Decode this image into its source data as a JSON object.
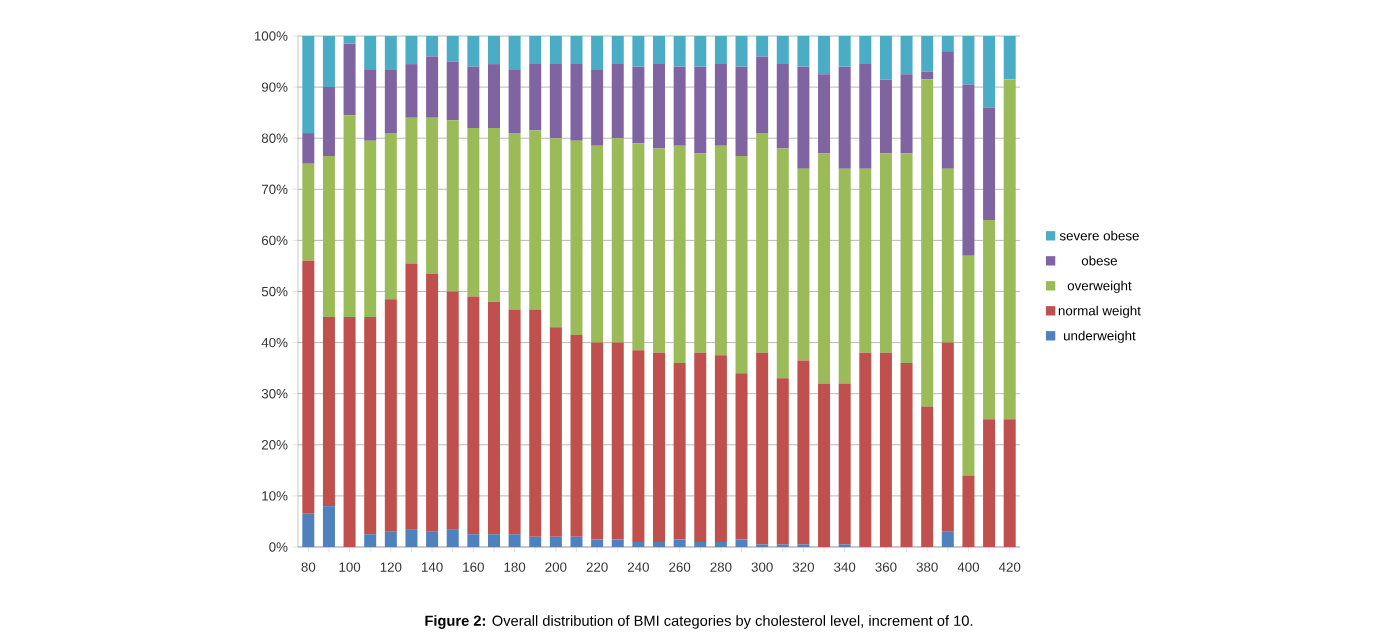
{
  "chart_data": {
    "type": "bar",
    "stacked": true,
    "categories": [
      "80",
      null,
      "100",
      null,
      "120",
      null,
      "140",
      null,
      "160",
      null,
      "180",
      null,
      "200",
      null,
      "220",
      null,
      "240",
      null,
      "260",
      null,
      "280",
      null,
      "300",
      null,
      "320",
      null,
      "340",
      null,
      "360",
      null,
      "380",
      null,
      "400",
      null,
      "420"
    ],
    "series": [
      {
        "name": "underweight",
        "color": "#4f81bd",
        "values": [
          6.5,
          8,
          0,
          2.5,
          3,
          3.5,
          3,
          3.5,
          2.5,
          2.5,
          2.5,
          2,
          2,
          2,
          1.5,
          1.5,
          1,
          1,
          1.5,
          1,
          1,
          1.5,
          0.5,
          0.5,
          0.5,
          0,
          0.5,
          0,
          0,
          0,
          0,
          3,
          0,
          0,
          0
        ]
      },
      {
        "name": "normal weight",
        "color": "#c0504d",
        "values": [
          49.5,
          37,
          45,
          42.5,
          45.5,
          52,
          50.5,
          46.5,
          46.5,
          45.5,
          44,
          44.5,
          41,
          39.5,
          38.5,
          38.5,
          37.5,
          37,
          34.5,
          37,
          36.5,
          32.5,
          37.5,
          32.5,
          36,
          32,
          31.5,
          38,
          38,
          36,
          27.5,
          37,
          14,
          25,
          25
        ]
      },
      {
        "name": "overweight",
        "color": "#9bbb59",
        "values": [
          19,
          31.5,
          39.5,
          34.5,
          32.5,
          28.5,
          30.5,
          33.5,
          33,
          34,
          34.5,
          35,
          37,
          38,
          38.5,
          40,
          40.5,
          40,
          42.5,
          39,
          41,
          42.5,
          43,
          45,
          37.5,
          45,
          42,
          36,
          39,
          41,
          64,
          34,
          43,
          39,
          66.5
        ]
      },
      {
        "name": "obese",
        "color": "#8064a2",
        "values": [
          6,
          13.5,
          14,
          14,
          12.5,
          10.5,
          12,
          11.5,
          12,
          12.5,
          12.5,
          13,
          14.5,
          15,
          15,
          14.5,
          15,
          16.5,
          15.5,
          17,
          16,
          17.5,
          15,
          16.5,
          20,
          15.5,
          20,
          20.5,
          14.5,
          15.5,
          1.5,
          23,
          33.5,
          22,
          0
        ]
      },
      {
        "name": "severe obese",
        "color": "#4bacc6",
        "values": [
          19,
          10,
          1.5,
          6.5,
          6.5,
          5.5,
          4,
          5,
          6,
          5.5,
          6.5,
          5.5,
          5.5,
          5.5,
          6.5,
          5.5,
          6,
          5.5,
          6,
          6,
          5.5,
          6,
          4,
          5.5,
          6,
          7.5,
          6,
          5.5,
          8.5,
          7.5,
          7,
          3,
          9.5,
          14,
          8.5
        ]
      }
    ],
    "ylim": [
      0,
      100
    ],
    "yticks": [
      {
        "value": 0,
        "label": "0%"
      },
      {
        "value": 10,
        "label": "10%"
      },
      {
        "value": 20,
        "label": "20%"
      },
      {
        "value": 30,
        "label": "30%"
      },
      {
        "value": 40,
        "label": "40%"
      },
      {
        "value": 50,
        "label": "50%"
      },
      {
        "value": 60,
        "label": "60%"
      },
      {
        "value": 70,
        "label": "70%"
      },
      {
        "value": 80,
        "label": "80%"
      },
      {
        "value": 90,
        "label": "90%"
      },
      {
        "value": 100,
        "label": "100%"
      }
    ],
    "grid": "y",
    "legend": "right",
    "annotations": [
      "**Figure 2:** Overall distribution of BMI categories by cholesterol level, increment of 10."
    ]
  }
}
